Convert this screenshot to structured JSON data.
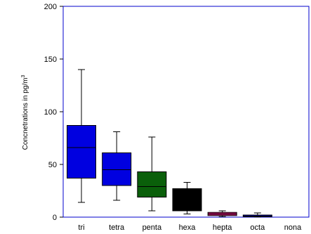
{
  "chart_data": {
    "type": "boxplot",
    "title": "",
    "ylabel": "Concnetrations in pg/m",
    "ylabel_superscript": "3",
    "xlabel": "",
    "ylim": [
      0,
      200
    ],
    "yticks": [
      0,
      50,
      100,
      150,
      200
    ],
    "grid": false,
    "categories": [
      "tri",
      "tetra",
      "penta",
      "hexa",
      "hepta",
      "octa",
      "nona"
    ],
    "boxes": [
      {
        "category": "tri",
        "whisker_low": 14,
        "q1": 37,
        "median": 66,
        "q3": 87,
        "whisker_high": 140,
        "color": "#0000e0"
      },
      {
        "category": "tetra",
        "whisker_low": 16,
        "q1": 30,
        "median": 45,
        "q3": 61,
        "whisker_high": 81,
        "color": "#0000e0"
      },
      {
        "category": "penta",
        "whisker_low": 6,
        "q1": 19,
        "median": 29,
        "q3": 43,
        "whisker_high": 76,
        "color": "#0a5f0a"
      },
      {
        "category": "hexa",
        "whisker_low": 3,
        "q1": 6,
        "median": 17,
        "q3": 27,
        "whisker_high": 33,
        "color": "#000000"
      },
      {
        "category": "hepta",
        "whisker_low": 0.5,
        "q1": 1.5,
        "median": 3,
        "q3": 4.5,
        "whisker_high": 6,
        "color": "#c0106a"
      },
      {
        "category": "octa",
        "whisker_low": 0.2,
        "q1": 0.5,
        "median": 1,
        "q3": 2,
        "whisker_high": 4,
        "color": "#0000e0"
      },
      {
        "category": "nona",
        "whisker_low": null,
        "q1": null,
        "median": null,
        "q3": null,
        "whisker_high": null,
        "color": "#0000e0"
      }
    ],
    "colors": {
      "frame": "#0000cc",
      "box_stroke": "#000000"
    }
  }
}
